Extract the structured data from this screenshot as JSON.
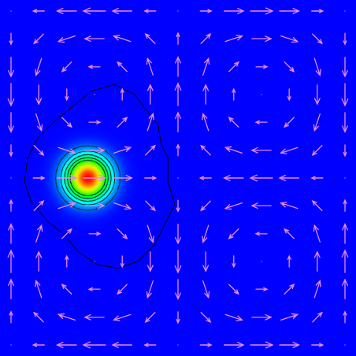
{
  "chart_data": {
    "type": "quiver",
    "xlim": [
      0,
      1
    ],
    "ylim": [
      0,
      1
    ],
    "tick_labels": false,
    "color": "#e58ae8",
    "x": [
      0,
      0.083,
      0.167,
      0.25,
      0.333,
      0.417,
      0.5,
      0.583,
      0.667,
      0.75,
      0.833,
      0.917,
      1
    ],
    "y": [
      0,
      0.083,
      0.167,
      0.25,
      0.333,
      0.417,
      0.5,
      0.583,
      0.667,
      0.75,
      0.833,
      0.917,
      1
    ],
    "u": [
      [
        0,
        -0.5,
        -0.87,
        -1,
        -0.87,
        -0.5,
        0,
        0.5,
        0.87,
        1,
        0.87,
        0.5,
        0
      ],
      [
        0,
        -0.43,
        -0.76,
        -0.87,
        -0.76,
        -0.43,
        0,
        0.43,
        0.76,
        0.87,
        0.76,
        0.43,
        0
      ],
      [
        0,
        -0.25,
        -0.43,
        -0.5,
        -0.43,
        -0.25,
        0,
        0.25,
        0.43,
        0.5,
        0.43,
        0.25,
        0
      ],
      [
        0,
        0,
        0,
        0,
        0,
        0,
        0,
        0,
        0,
        0,
        0,
        0,
        0
      ],
      [
        0,
        0.25,
        0.43,
        0.5,
        0.43,
        0.25,
        0,
        -0.25,
        -0.43,
        -0.5,
        -0.43,
        -0.25,
        0
      ],
      [
        0,
        0.43,
        0.76,
        0.87,
        0.76,
        0.43,
        0,
        -0.43,
        -0.76,
        -0.87,
        -0.76,
        -0.43,
        0
      ],
      [
        0,
        0.5,
        0.87,
        1,
        0.87,
        0.5,
        0,
        -0.5,
        -0.87,
        -1,
        -0.87,
        -0.5,
        0
      ],
      [
        0,
        0.43,
        0.76,
        0.87,
        0.76,
        0.43,
        0,
        -0.43,
        -0.76,
        -0.87,
        -0.76,
        -0.43,
        0
      ],
      [
        0,
        0.25,
        0.43,
        0.5,
        0.43,
        0.25,
        0,
        -0.25,
        -0.43,
        -0.5,
        -0.43,
        -0.25,
        0
      ],
      [
        0,
        0,
        0,
        0,
        0,
        0,
        0,
        0,
        0,
        0,
        0,
        0,
        0
      ],
      [
        0,
        -0.25,
        -0.43,
        -0.5,
        -0.43,
        -0.25,
        0,
        0.25,
        0.43,
        0.5,
        0.43,
        0.25,
        0
      ],
      [
        0,
        -0.43,
        -0.76,
        -0.87,
        -0.76,
        -0.43,
        0,
        0.43,
        0.76,
        0.87,
        0.76,
        0.43,
        0
      ],
      [
        0,
        -0.5,
        -0.87,
        -1,
        -0.87,
        -0.5,
        0,
        0.5,
        0.87,
        1,
        0.87,
        0.5,
        0
      ]
    ],
    "v": [
      [
        0,
        0,
        0,
        0,
        0,
        0,
        0,
        0,
        0,
        0,
        0,
        0,
        0
      ],
      [
        0.5,
        0.43,
        0.25,
        0,
        -0.25,
        -0.43,
        -0.5,
        -0.43,
        -0.25,
        0,
        0.25,
        0.43,
        0.5
      ],
      [
        0.87,
        0.76,
        0.43,
        0,
        -0.43,
        -0.76,
        -0.87,
        -0.76,
        -0.43,
        0,
        0.43,
        0.76,
        0.87
      ],
      [
        1,
        0.87,
        0.5,
        0,
        -0.5,
        -0.87,
        -1,
        -0.87,
        -0.5,
        0,
        0.5,
        0.87,
        1
      ],
      [
        0.87,
        0.76,
        0.43,
        0,
        -0.43,
        -0.76,
        -0.87,
        -0.76,
        -0.43,
        0,
        0.43,
        0.76,
        0.87
      ],
      [
        0.5,
        0.43,
        0.25,
        0,
        -0.25,
        -0.43,
        -0.5,
        -0.43,
        -0.25,
        0,
        0.25,
        0.43,
        0.5
      ],
      [
        0,
        0,
        0,
        0,
        0,
        0,
        0,
        0,
        0,
        0,
        0,
        0,
        0
      ],
      [
        -0.5,
        -0.43,
        -0.25,
        0,
        0.25,
        0.43,
        0.5,
        0.43,
        0.25,
        0,
        -0.25,
        -0.43,
        -0.5
      ],
      [
        -0.87,
        -0.76,
        -0.43,
        0,
        0.43,
        0.76,
        0.87,
        0.76,
        0.43,
        0,
        -0.43,
        -0.76,
        -0.87
      ],
      [
        -1,
        -0.87,
        -0.5,
        0,
        0.5,
        0.87,
        1,
        0.87,
        0.5,
        0,
        -0.5,
        -0.87,
        -1
      ],
      [
        -0.87,
        -0.76,
        -0.43,
        0,
        0.43,
        0.76,
        0.87,
        0.76,
        0.43,
        0,
        -0.43,
        -0.76,
        -0.87
      ],
      [
        -0.5,
        -0.43,
        -0.25,
        0,
        0.25,
        0.43,
        0.5,
        0.43,
        0.25,
        0,
        -0.25,
        -0.43,
        -0.5
      ],
      [
        0,
        0,
        0,
        0,
        0,
        0,
        0,
        0,
        0,
        0,
        0,
        0,
        0
      ]
    ],
    "concentration": {
      "center": [
        0.23,
        0.5
      ],
      "width": 0.045,
      "peak": 1,
      "clim": [
        0,
        1
      ],
      "colors": [
        "#0000ff",
        "#00ffff",
        "#00ff00",
        "#ffff00",
        "#ff0000"
      ],
      "levels": [
        0.1,
        0.2,
        0.3,
        0.4,
        0.5
      ]
    },
    "outline": {
      "x": [
        0.31,
        0.37,
        0.4,
        0.44,
        0.45,
        0.47,
        0.47,
        0.49,
        0.46,
        0.43,
        0.38,
        0.32,
        0.26,
        0.2,
        0.16,
        0.11,
        0.06,
        0.04,
        0.05,
        0.08,
        0.13,
        0.18,
        0.24
      ],
      "y": [
        0.78,
        0.75,
        0.71,
        0.66,
        0.6,
        0.56,
        0.49,
        0.42,
        0.36,
        0.3,
        0.25,
        0.23,
        0.24,
        0.28,
        0.33,
        0.37,
        0.43,
        0.49,
        0.56,
        0.62,
        0.67,
        0.71,
        0.76
      ]
    }
  }
}
